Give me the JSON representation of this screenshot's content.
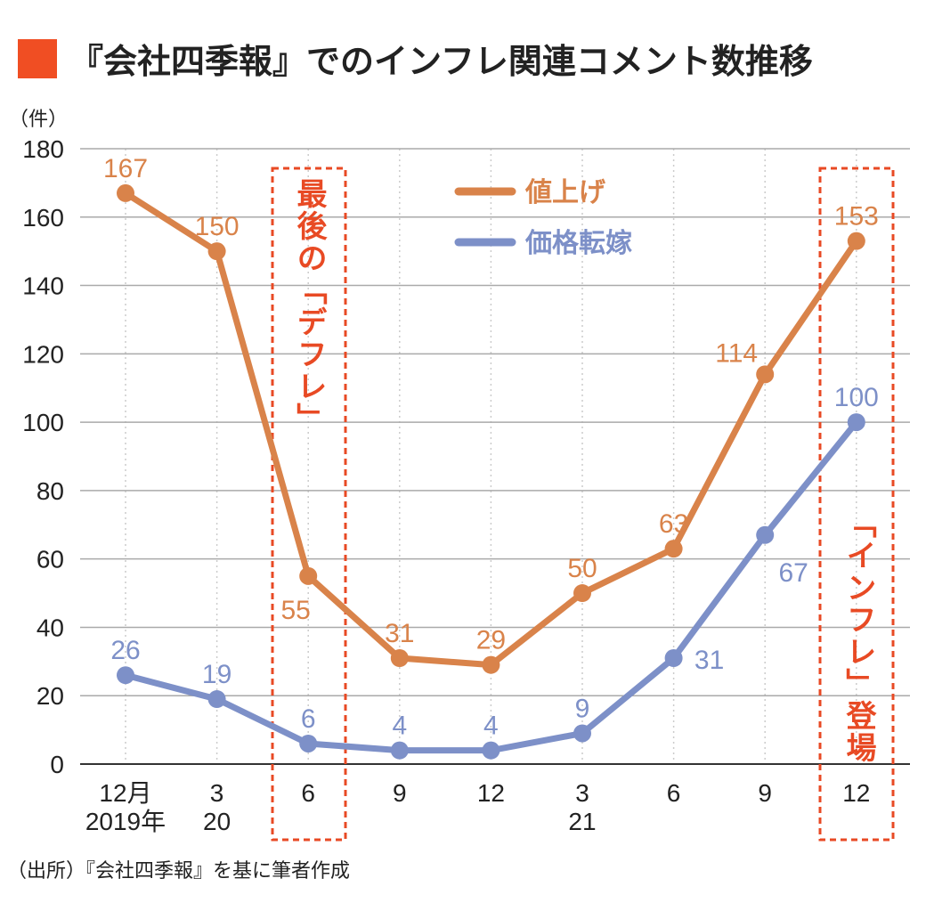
{
  "title": "『会社四季報』でのインフレ関連コメント数推移",
  "colors": {
    "title_marker": "#f04e23",
    "orange": "#d9834a",
    "blue": "#7d90c8",
    "annotation": "#e84a24"
  },
  "unit": "（件）",
  "source": "（出所）『会社四季報』を基に筆者作成",
  "annotations": {
    "deflation": "最後の「デフレ」",
    "inflation": "「インフレ」登場"
  },
  "chart_data": {
    "type": "line",
    "categories": [
      [
        "12月",
        "2019年"
      ],
      [
        "3",
        "20"
      ],
      [
        "6",
        ""
      ],
      [
        "9",
        ""
      ],
      [
        "12",
        ""
      ],
      [
        "3",
        "21"
      ],
      [
        "6",
        ""
      ],
      [
        "9",
        ""
      ],
      [
        "12",
        ""
      ]
    ],
    "ylim": [
      0,
      180
    ],
    "yticks": [
      0,
      20,
      40,
      60,
      80,
      100,
      120,
      140,
      160,
      180
    ],
    "grid": true,
    "legend": "top-center",
    "series": [
      {
        "name": "値上げ",
        "color": "#d9834a",
        "values": [
          167,
          150,
          55,
          31,
          29,
          50,
          63,
          114,
          153
        ]
      },
      {
        "name": "価格転嫁",
        "color": "#7d90c8",
        "values": [
          26,
          19,
          6,
          4,
          4,
          9,
          31,
          67,
          100
        ]
      }
    ]
  }
}
